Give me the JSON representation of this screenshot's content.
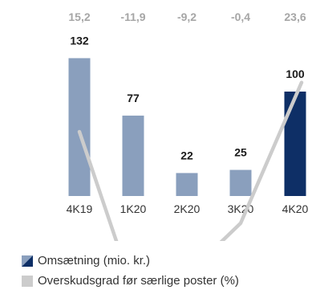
{
  "chart_data": {
    "type": "bar",
    "categories": [
      "4K19",
      "1K20",
      "2K20",
      "3K20",
      "4K20"
    ],
    "series": [
      {
        "name": "Omsætning (mio. kr.)",
        "type": "bar",
        "values": [
          132,
          77,
          22,
          25,
          100
        ],
        "data_labels": [
          "132",
          "77",
          "22",
          "25",
          "100"
        ]
      },
      {
        "name": "Overskudsgrad før særlige poster (%)",
        "type": "line",
        "values": [
          15.2,
          -11.9,
          -9.2,
          -0.4,
          23.6
        ],
        "data_labels": [
          "15,2",
          "-11,9",
          "-9,2",
          "-0,4",
          "23,6"
        ]
      }
    ],
    "colors": {
      "bar": "#8a9fbd",
      "bar_highlight": "#0e2f66",
      "line": "#cccccc",
      "margin_labels": "#a6a6a6",
      "value_labels": "#1a1a1a",
      "category_labels": "#333333"
    },
    "highlight_index": 4,
    "grid": false,
    "legend_position": "bottom-left"
  },
  "legend": {
    "items": [
      {
        "label": "Omsætning (mio. kr.)",
        "color": "#0e2f66",
        "icon": "split-diagonal-swatch"
      },
      {
        "label": "Overskudsgrad før særlige poster (%)",
        "color": "#cccccc",
        "icon": "square-swatch"
      }
    ]
  }
}
